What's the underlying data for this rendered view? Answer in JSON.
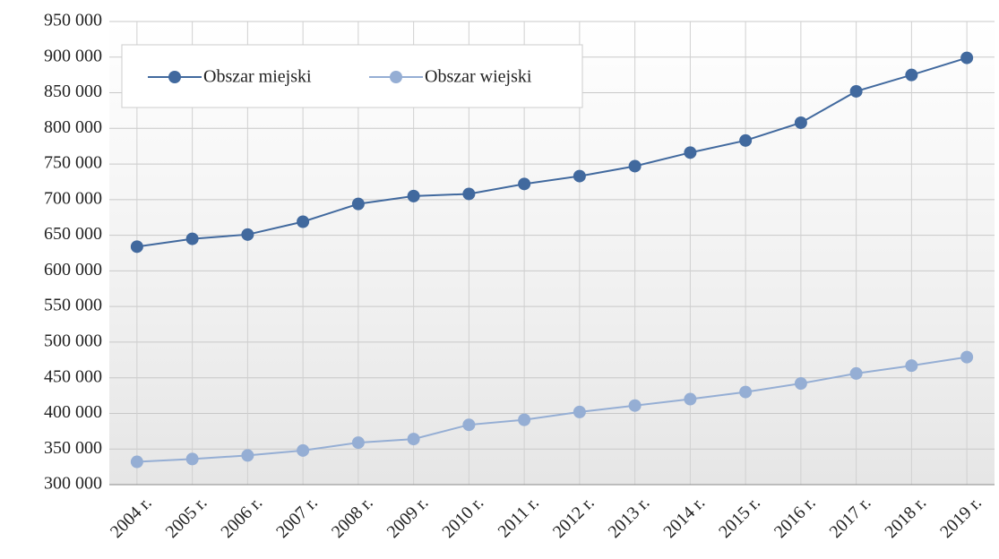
{
  "chart_data": {
    "type": "line",
    "categories": [
      "2004 r.",
      "2005 r.",
      "2006 r.",
      "2007 r.",
      "2008 r.",
      "2009 r.",
      "2010 r.",
      "2011 r.",
      "2012 r.",
      "2013 r.",
      "2014 r.",
      "2015 r.",
      "2016 r.",
      "2017 r.",
      "2018 r.",
      "2019 r."
    ],
    "series": [
      {
        "name": "Obszar miejski",
        "color": "#41699e",
        "values": [
          634000,
          645000,
          651000,
          669000,
          694000,
          705000,
          708000,
          722000,
          733000,
          747000,
          766000,
          783000,
          808000,
          852000,
          875000,
          899000
        ]
      },
      {
        "name": "Obszar wiejski",
        "color": "#95aed4",
        "values": [
          332000,
          336000,
          341000,
          348000,
          359000,
          364000,
          384000,
          391000,
          402000,
          411000,
          420000,
          430000,
          442000,
          456000,
          467000,
          479000
        ]
      }
    ],
    "ylim": [
      300000,
      950000
    ],
    "yticks": [
      {
        "value": 300000,
        "label": "300 000"
      },
      {
        "value": 350000,
        "label": "350 000"
      },
      {
        "value": 400000,
        "label": "400 000"
      },
      {
        "value": 450000,
        "label": "450 000"
      },
      {
        "value": 500000,
        "label": "500 000"
      },
      {
        "value": 550000,
        "label": "550 000"
      },
      {
        "value": 600000,
        "label": "600 000"
      },
      {
        "value": 650000,
        "label": "650 000"
      },
      {
        "value": 700000,
        "label": "700 000"
      },
      {
        "value": 750000,
        "label": "750 000"
      },
      {
        "value": 800000,
        "label": "800 000"
      },
      {
        "value": 850000,
        "label": "850 000"
      },
      {
        "value": 900000,
        "label": "900 000"
      },
      {
        "value": 950000,
        "label": "950 000"
      }
    ],
    "grid": true,
    "legend": "top-left"
  }
}
